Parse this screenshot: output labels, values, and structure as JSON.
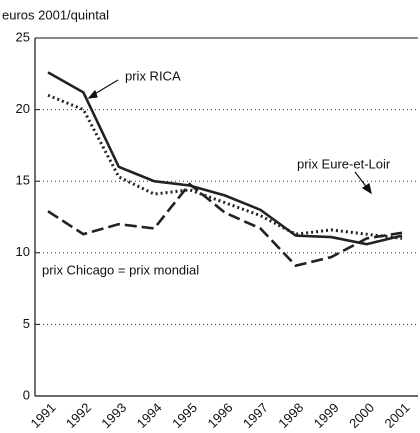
{
  "chart_data": {
    "type": "line",
    "y_label": "euros 2001/quintal",
    "categories": [
      "1991",
      "1992",
      "1993",
      "1994",
      "1995",
      "1996",
      "1997",
      "1998",
      "1999",
      "2000",
      "2001"
    ],
    "series": [
      {
        "name": "prix RICA",
        "color": "#222",
        "style": "solid",
        "values": [
          22.6,
          21.2,
          16.0,
          15.0,
          14.7,
          14.0,
          13.0,
          11.2,
          11.1,
          10.6,
          11.2
        ]
      },
      {
        "name": "prix Eure-et-Loir",
        "color": "#222",
        "style": "dotted",
        "values": [
          21.0,
          20.0,
          15.3,
          14.1,
          14.4,
          13.5,
          12.6,
          11.3,
          11.6,
          11.3,
          11.0
        ]
      },
      {
        "name": "prix Chicago = prix mondial",
        "color": "#222",
        "style": "dashed",
        "values": [
          12.9,
          11.3,
          12.0,
          11.7,
          14.8,
          12.8,
          11.7,
          9.1,
          9.7,
          11.0,
          11.4
        ]
      }
    ],
    "ylim": [
      0,
      25
    ],
    "yticks": [
      0,
      5,
      10,
      15,
      20,
      25
    ],
    "grid": true
  }
}
